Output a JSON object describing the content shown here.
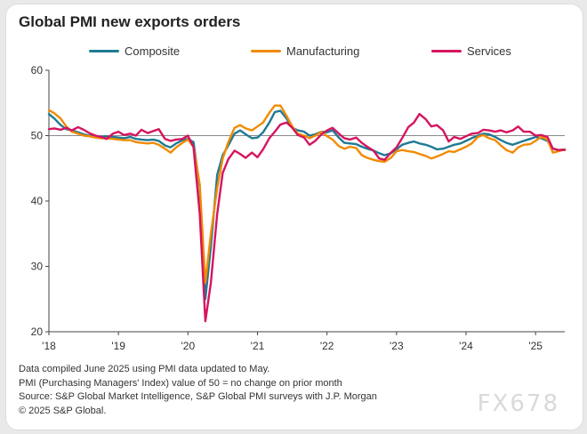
{
  "chart_data": {
    "type": "line",
    "title": "Global PMI new exports orders",
    "ylim": [
      20,
      60
    ],
    "yticks": [
      20,
      30,
      40,
      50,
      60
    ],
    "xlim": [
      2018.0,
      2025.42
    ],
    "xticks": [
      {
        "label": "'18",
        "value": 2018.0
      },
      {
        "label": "'19",
        "value": 2019.0
      },
      {
        "label": "'20",
        "value": 2020.0
      },
      {
        "label": "'21",
        "value": 2021.0
      },
      {
        "label": "'22",
        "value": 2022.0
      },
      {
        "label": "'23",
        "value": 2023.0
      },
      {
        "label": "'24",
        "value": 2024.0
      },
      {
        "label": "'25",
        "value": 2025.0
      }
    ],
    "reference_line": 50,
    "legend_position": "top",
    "series": [
      {
        "name": "Composite",
        "color": "#1f7a94",
        "points": [
          [
            2018.0,
            53.3
          ],
          [
            2018.08,
            52.6
          ],
          [
            2018.17,
            51.6
          ],
          [
            2018.25,
            51.0
          ],
          [
            2018.33,
            50.8
          ],
          [
            2018.42,
            50.5
          ],
          [
            2018.5,
            50.2
          ],
          [
            2018.58,
            50.0
          ],
          [
            2018.67,
            49.9
          ],
          [
            2018.75,
            49.8
          ],
          [
            2018.83,
            49.9
          ],
          [
            2018.92,
            49.8
          ],
          [
            2019.0,
            49.7
          ],
          [
            2019.08,
            49.6
          ],
          [
            2019.17,
            49.8
          ],
          [
            2019.25,
            49.5
          ],
          [
            2019.33,
            49.4
          ],
          [
            2019.42,
            49.3
          ],
          [
            2019.5,
            49.4
          ],
          [
            2019.58,
            49.2
          ],
          [
            2019.67,
            48.5
          ],
          [
            2019.75,
            48.2
          ],
          [
            2019.83,
            48.8
          ],
          [
            2019.92,
            49.3
          ],
          [
            2020.0,
            49.5
          ],
          [
            2020.08,
            49.0
          ],
          [
            2020.17,
            42.0
          ],
          [
            2020.25,
            25.0
          ],
          [
            2020.33,
            33.0
          ],
          [
            2020.42,
            44.0
          ],
          [
            2020.5,
            47.0
          ],
          [
            2020.58,
            48.5
          ],
          [
            2020.67,
            50.3
          ],
          [
            2020.75,
            50.8
          ],
          [
            2020.83,
            50.2
          ],
          [
            2020.92,
            49.6
          ],
          [
            2021.0,
            49.7
          ],
          [
            2021.08,
            50.5
          ],
          [
            2021.17,
            52.0
          ],
          [
            2021.25,
            53.6
          ],
          [
            2021.33,
            53.8
          ],
          [
            2021.42,
            52.6
          ],
          [
            2021.5,
            51.2
          ],
          [
            2021.58,
            50.8
          ],
          [
            2021.67,
            50.6
          ],
          [
            2021.75,
            50.0
          ],
          [
            2021.83,
            50.2
          ],
          [
            2021.92,
            50.6
          ],
          [
            2022.0,
            50.5
          ],
          [
            2022.08,
            50.8
          ],
          [
            2022.17,
            49.7
          ],
          [
            2022.25,
            48.9
          ],
          [
            2022.33,
            48.8
          ],
          [
            2022.42,
            48.7
          ],
          [
            2022.5,
            48.3
          ],
          [
            2022.58,
            48.0
          ],
          [
            2022.67,
            47.7
          ],
          [
            2022.75,
            47.3
          ],
          [
            2022.83,
            47.0
          ],
          [
            2022.92,
            47.3
          ],
          [
            2023.0,
            47.9
          ],
          [
            2023.08,
            48.6
          ],
          [
            2023.17,
            48.9
          ],
          [
            2023.25,
            49.1
          ],
          [
            2023.33,
            48.8
          ],
          [
            2023.42,
            48.6
          ],
          [
            2023.5,
            48.3
          ],
          [
            2023.58,
            47.9
          ],
          [
            2023.67,
            48.0
          ],
          [
            2023.75,
            48.3
          ],
          [
            2023.83,
            48.6
          ],
          [
            2023.92,
            48.8
          ],
          [
            2024.0,
            49.2
          ],
          [
            2024.08,
            49.6
          ],
          [
            2024.17,
            50.0
          ],
          [
            2024.25,
            50.3
          ],
          [
            2024.33,
            50.2
          ],
          [
            2024.42,
            49.8
          ],
          [
            2024.5,
            49.3
          ],
          [
            2024.58,
            48.9
          ],
          [
            2024.67,
            48.6
          ],
          [
            2024.75,
            48.9
          ],
          [
            2024.83,
            49.2
          ],
          [
            2024.92,
            49.5
          ],
          [
            2025.0,
            49.8
          ],
          [
            2025.08,
            49.6
          ],
          [
            2025.17,
            49.2
          ],
          [
            2025.25,
            48.0
          ],
          [
            2025.33,
            47.8
          ],
          [
            2025.42,
            47.9
          ]
        ]
      },
      {
        "name": "Manufacturing",
        "color": "#f28a00",
        "points": [
          [
            2018.0,
            53.9
          ],
          [
            2018.08,
            53.4
          ],
          [
            2018.17,
            52.6
          ],
          [
            2018.25,
            51.4
          ],
          [
            2018.33,
            50.6
          ],
          [
            2018.42,
            50.3
          ],
          [
            2018.5,
            50.0
          ],
          [
            2018.58,
            49.9
          ],
          [
            2018.67,
            49.7
          ],
          [
            2018.75,
            49.6
          ],
          [
            2018.83,
            49.6
          ],
          [
            2018.92,
            49.5
          ],
          [
            2019.0,
            49.4
          ],
          [
            2019.08,
            49.3
          ],
          [
            2019.17,
            49.3
          ],
          [
            2019.25,
            49.0
          ],
          [
            2019.33,
            48.9
          ],
          [
            2019.42,
            48.8
          ],
          [
            2019.5,
            48.9
          ],
          [
            2019.58,
            48.6
          ],
          [
            2019.67,
            48.0
          ],
          [
            2019.75,
            47.4
          ],
          [
            2019.83,
            48.2
          ],
          [
            2019.92,
            48.9
          ],
          [
            2020.0,
            49.4
          ],
          [
            2020.08,
            48.3
          ],
          [
            2020.17,
            42.5
          ],
          [
            2020.25,
            27.5
          ],
          [
            2020.33,
            35.0
          ],
          [
            2020.42,
            42.0
          ],
          [
            2020.5,
            46.5
          ],
          [
            2020.58,
            49.0
          ],
          [
            2020.67,
            51.2
          ],
          [
            2020.75,
            51.6
          ],
          [
            2020.83,
            51.1
          ],
          [
            2020.92,
            50.8
          ],
          [
            2021.0,
            51.4
          ],
          [
            2021.08,
            52.0
          ],
          [
            2021.17,
            53.5
          ],
          [
            2021.25,
            54.6
          ],
          [
            2021.33,
            54.6
          ],
          [
            2021.42,
            53.0
          ],
          [
            2021.5,
            51.4
          ],
          [
            2021.58,
            50.3
          ],
          [
            2021.67,
            50.0
          ],
          [
            2021.75,
            49.6
          ],
          [
            2021.83,
            50.0
          ],
          [
            2021.92,
            50.6
          ],
          [
            2022.0,
            49.9
          ],
          [
            2022.08,
            49.4
          ],
          [
            2022.17,
            48.4
          ],
          [
            2022.25,
            48.0
          ],
          [
            2022.33,
            48.3
          ],
          [
            2022.42,
            48.1
          ],
          [
            2022.5,
            47.0
          ],
          [
            2022.58,
            46.6
          ],
          [
            2022.67,
            46.3
          ],
          [
            2022.75,
            46.1
          ],
          [
            2022.83,
            46.0
          ],
          [
            2022.92,
            46.6
          ],
          [
            2023.0,
            47.6
          ],
          [
            2023.08,
            47.8
          ],
          [
            2023.17,
            47.6
          ],
          [
            2023.25,
            47.5
          ],
          [
            2023.33,
            47.2
          ],
          [
            2023.42,
            46.9
          ],
          [
            2023.5,
            46.5
          ],
          [
            2023.58,
            46.8
          ],
          [
            2023.67,
            47.2
          ],
          [
            2023.75,
            47.6
          ],
          [
            2023.83,
            47.5
          ],
          [
            2023.92,
            47.9
          ],
          [
            2024.0,
            48.3
          ],
          [
            2024.08,
            48.8
          ],
          [
            2024.17,
            49.8
          ],
          [
            2024.25,
            50.1
          ],
          [
            2024.33,
            49.6
          ],
          [
            2024.42,
            49.3
          ],
          [
            2024.5,
            48.5
          ],
          [
            2024.58,
            47.8
          ],
          [
            2024.67,
            47.4
          ],
          [
            2024.75,
            48.2
          ],
          [
            2024.83,
            48.6
          ],
          [
            2024.92,
            48.7
          ],
          [
            2025.0,
            49.2
          ],
          [
            2025.08,
            49.8
          ],
          [
            2025.17,
            49.4
          ],
          [
            2025.25,
            47.4
          ],
          [
            2025.33,
            47.6
          ],
          [
            2025.42,
            47.9
          ]
        ]
      },
      {
        "name": "Services",
        "color": "#d6145f",
        "points": [
          [
            2018.0,
            51.0
          ],
          [
            2018.08,
            51.1
          ],
          [
            2018.17,
            50.9
          ],
          [
            2018.25,
            51.2
          ],
          [
            2018.33,
            50.8
          ],
          [
            2018.42,
            51.3
          ],
          [
            2018.5,
            50.9
          ],
          [
            2018.58,
            50.4
          ],
          [
            2018.67,
            50.0
          ],
          [
            2018.75,
            49.8
          ],
          [
            2018.83,
            49.5
          ],
          [
            2018.92,
            50.3
          ],
          [
            2019.0,
            50.6
          ],
          [
            2019.08,
            50.1
          ],
          [
            2019.17,
            50.3
          ],
          [
            2019.25,
            50.0
          ],
          [
            2019.33,
            50.9
          ],
          [
            2019.42,
            50.4
          ],
          [
            2019.5,
            50.7
          ],
          [
            2019.58,
            51.0
          ],
          [
            2019.67,
            49.5
          ],
          [
            2019.75,
            49.2
          ],
          [
            2019.83,
            49.4
          ],
          [
            2019.92,
            49.5
          ],
          [
            2020.0,
            50.0
          ],
          [
            2020.08,
            48.2
          ],
          [
            2020.17,
            38.0
          ],
          [
            2020.25,
            21.6
          ],
          [
            2020.33,
            27.5
          ],
          [
            2020.42,
            38.0
          ],
          [
            2020.5,
            44.3
          ],
          [
            2020.58,
            46.4
          ],
          [
            2020.67,
            47.7
          ],
          [
            2020.75,
            47.2
          ],
          [
            2020.83,
            46.6
          ],
          [
            2020.92,
            47.4
          ],
          [
            2021.0,
            46.7
          ],
          [
            2021.08,
            47.9
          ],
          [
            2021.17,
            49.6
          ],
          [
            2021.25,
            50.6
          ],
          [
            2021.33,
            51.7
          ],
          [
            2021.42,
            52.0
          ],
          [
            2021.5,
            51.2
          ],
          [
            2021.58,
            50.1
          ],
          [
            2021.67,
            49.7
          ],
          [
            2021.75,
            48.6
          ],
          [
            2021.83,
            49.2
          ],
          [
            2021.92,
            50.2
          ],
          [
            2022.0,
            50.8
          ],
          [
            2022.08,
            51.2
          ],
          [
            2022.17,
            50.3
          ],
          [
            2022.25,
            49.6
          ],
          [
            2022.33,
            49.4
          ],
          [
            2022.42,
            49.7
          ],
          [
            2022.5,
            48.9
          ],
          [
            2022.58,
            48.3
          ],
          [
            2022.67,
            47.7
          ],
          [
            2022.75,
            46.5
          ],
          [
            2022.83,
            46.3
          ],
          [
            2022.92,
            47.4
          ],
          [
            2023.0,
            48.2
          ],
          [
            2023.08,
            49.6
          ],
          [
            2023.17,
            51.3
          ],
          [
            2023.25,
            52.0
          ],
          [
            2023.33,
            53.3
          ],
          [
            2023.42,
            52.5
          ],
          [
            2023.5,
            51.4
          ],
          [
            2023.58,
            51.6
          ],
          [
            2023.67,
            50.8
          ],
          [
            2023.75,
            49.1
          ],
          [
            2023.83,
            49.8
          ],
          [
            2023.92,
            49.5
          ],
          [
            2024.0,
            49.9
          ],
          [
            2024.08,
            50.3
          ],
          [
            2024.17,
            50.4
          ],
          [
            2024.25,
            50.9
          ],
          [
            2024.33,
            50.8
          ],
          [
            2024.42,
            50.6
          ],
          [
            2024.5,
            50.8
          ],
          [
            2024.58,
            50.5
          ],
          [
            2024.67,
            50.8
          ],
          [
            2024.75,
            51.4
          ],
          [
            2024.83,
            50.6
          ],
          [
            2024.92,
            50.6
          ],
          [
            2025.0,
            50.0
          ],
          [
            2025.08,
            50.1
          ],
          [
            2025.17,
            49.8
          ],
          [
            2025.25,
            48.0
          ],
          [
            2025.33,
            47.8
          ],
          [
            2025.42,
            47.8
          ]
        ]
      }
    ]
  },
  "notes": [
    "Data compiled June 2025 using PMI data updated to May.",
    "PMI (Purchasing Managers' Index) value of 50 = no change on prior month",
    "Source: S&P Global Market Intelligence, S&P Global PMI surveys with J.P. Morgan",
    "© 2025 S&P Global."
  ],
  "watermark": "FX678"
}
